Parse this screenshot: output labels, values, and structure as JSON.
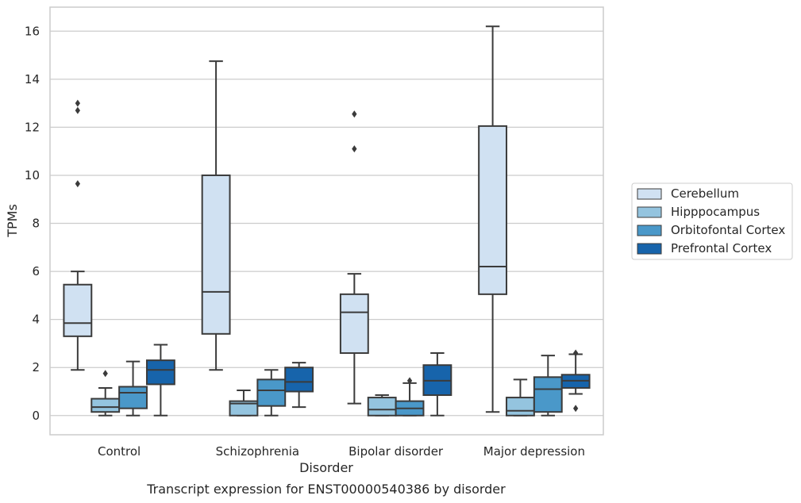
{
  "chart_data": {
    "type": "box",
    "title": "",
    "xlabel": "Disorder",
    "ylabel": "TPMs",
    "caption": "Transcript expression for ENST00000540386 by disorder",
    "ylim": [
      -0.8,
      17
    ],
    "yticks": [
      0,
      2,
      4,
      6,
      8,
      10,
      12,
      14,
      16
    ],
    "grid": true,
    "legend_position": "right",
    "categories": [
      "Control",
      "Schizophrenia",
      "Bipolar disorder",
      "Major depression"
    ],
    "series": [
      {
        "name": "Cerebellum",
        "color": "#d0e1f2",
        "boxes": [
          {
            "q1": 3.3,
            "median": 3.85,
            "q3": 5.45,
            "whisker_low": 1.9,
            "whisker_high": 6.0,
            "outliers": [
              9.65,
              12.7,
              13.0
            ]
          },
          {
            "q1": 3.4,
            "median": 5.15,
            "q3": 10.0,
            "whisker_low": 1.9,
            "whisker_high": 14.75,
            "outliers": []
          },
          {
            "q1": 2.6,
            "median": 4.3,
            "q3": 5.05,
            "whisker_low": 0.5,
            "whisker_high": 5.9,
            "outliers": [
              11.1,
              12.55
            ]
          },
          {
            "q1": 5.05,
            "median": 6.2,
            "q3": 12.05,
            "whisker_low": 0.15,
            "whisker_high": 16.2,
            "outliers": []
          }
        ]
      },
      {
        "name": "Hipppocampus",
        "color": "#94c4df",
        "boxes": [
          {
            "q1": 0.15,
            "median": 0.35,
            "q3": 0.7,
            "whisker_low": 0.0,
            "whisker_high": 1.15,
            "outliers": [
              1.75
            ]
          },
          {
            "q1": 0.0,
            "median": 0.5,
            "q3": 0.6,
            "whisker_low": 0.0,
            "whisker_high": 1.05,
            "outliers": []
          },
          {
            "q1": 0.0,
            "median": 0.25,
            "q3": 0.75,
            "whisker_low": 0.0,
            "whisker_high": 0.85,
            "outliers": []
          },
          {
            "q1": 0.0,
            "median": 0.2,
            "q3": 0.75,
            "whisker_low": 0.0,
            "whisker_high": 1.5,
            "outliers": []
          }
        ]
      },
      {
        "name": "Orbitofontal Cortex",
        "color": "#4a98c9",
        "boxes": [
          {
            "q1": 0.3,
            "median": 0.95,
            "q3": 1.2,
            "whisker_low": 0.0,
            "whisker_high": 2.25,
            "outliers": []
          },
          {
            "q1": 0.4,
            "median": 1.05,
            "q3": 1.5,
            "whisker_low": 0.0,
            "whisker_high": 1.9,
            "outliers": []
          },
          {
            "q1": 0.0,
            "median": 0.3,
            "q3": 0.6,
            "whisker_low": 0.0,
            "whisker_high": 1.35,
            "outliers": [
              1.45
            ]
          },
          {
            "q1": 0.15,
            "median": 1.1,
            "q3": 1.6,
            "whisker_low": 0.0,
            "whisker_high": 2.5,
            "outliers": []
          }
        ]
      },
      {
        "name": "Prefrontal Cortex",
        "color": "#1764ab",
        "boxes": [
          {
            "q1": 1.3,
            "median": 1.9,
            "q3": 2.3,
            "whisker_low": 0.0,
            "whisker_high": 2.95,
            "outliers": []
          },
          {
            "q1": 1.0,
            "median": 1.4,
            "q3": 2.0,
            "whisker_low": 0.35,
            "whisker_high": 2.2,
            "outliers": []
          },
          {
            "q1": 0.85,
            "median": 1.45,
            "q3": 2.1,
            "whisker_low": 0.0,
            "whisker_high": 2.6,
            "outliers": []
          },
          {
            "q1": 1.15,
            "median": 1.45,
            "q3": 1.7,
            "whisker_low": 0.9,
            "whisker_high": 2.55,
            "outliers": [
              0.3,
              2.6
            ]
          }
        ]
      }
    ]
  }
}
